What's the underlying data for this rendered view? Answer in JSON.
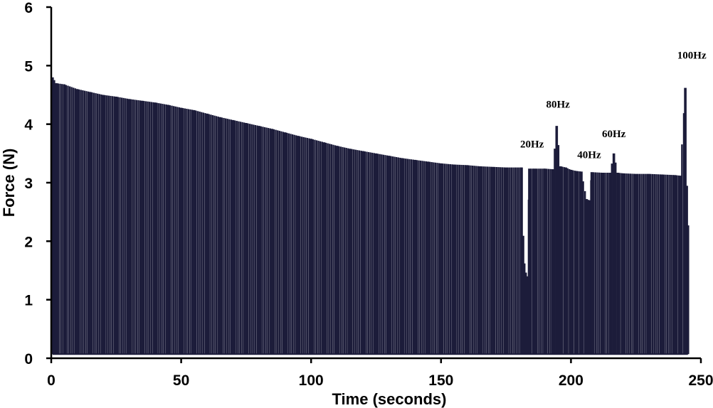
{
  "chart_data": {
    "type": "line",
    "title": "",
    "xlabel": "Time (seconds)",
    "ylabel": "Force (N)",
    "xlim": [
      0,
      250
    ],
    "ylim": [
      0,
      6
    ],
    "xticks": [
      0,
      50,
      100,
      150,
      200,
      250
    ],
    "yticks": [
      0,
      1,
      2,
      3,
      4,
      5,
      6
    ],
    "grid": false,
    "legend": "none",
    "color": "#1c1c3a",
    "baseline": 0.07,
    "series": [
      {
        "name": "",
        "description_points": "peak force of each contraction (time s, force N)",
        "points": [
          [
            0.5,
            4.8
          ],
          [
            2,
            4.7
          ],
          [
            5,
            4.68
          ],
          [
            10,
            4.6
          ],
          [
            15,
            4.55
          ],
          [
            20,
            4.5
          ],
          [
            25,
            4.47
          ],
          [
            30,
            4.43
          ],
          [
            35,
            4.4
          ],
          [
            40,
            4.37
          ],
          [
            45,
            4.33
          ],
          [
            50,
            4.28
          ],
          [
            55,
            4.24
          ],
          [
            60,
            4.18
          ],
          [
            65,
            4.12
          ],
          [
            70,
            4.07
          ],
          [
            75,
            4.02
          ],
          [
            80,
            3.97
          ],
          [
            85,
            3.92
          ],
          [
            90,
            3.86
          ],
          [
            95,
            3.8
          ],
          [
            100,
            3.75
          ],
          [
            105,
            3.69
          ],
          [
            110,
            3.63
          ],
          [
            115,
            3.58
          ],
          [
            120,
            3.54
          ],
          [
            125,
            3.5
          ],
          [
            130,
            3.46
          ],
          [
            135,
            3.42
          ],
          [
            140,
            3.39
          ],
          [
            145,
            3.36
          ],
          [
            150,
            3.33
          ],
          [
            155,
            3.31
          ],
          [
            160,
            3.3
          ],
          [
            165,
            3.28
          ],
          [
            170,
            3.27
          ],
          [
            175,
            3.26
          ],
          [
            181,
            3.26
          ],
          [
            182,
            1.62
          ],
          [
            183,
            1.4
          ],
          [
            184,
            3.24
          ],
          [
            186,
            3.24
          ],
          [
            190,
            3.24
          ],
          [
            193,
            3.23
          ],
          [
            194.5,
            3.97
          ],
          [
            196,
            3.28
          ],
          [
            198,
            3.26
          ],
          [
            200,
            3.22
          ],
          [
            202,
            3.2
          ],
          [
            204,
            3.19
          ],
          [
            206,
            2.72
          ],
          [
            207,
            2.7
          ],
          [
            208,
            3.18
          ],
          [
            212,
            3.17
          ],
          [
            215,
            3.17
          ],
          [
            216.5,
            3.5
          ],
          [
            218,
            3.17
          ],
          [
            220,
            3.16
          ],
          [
            225,
            3.15
          ],
          [
            230,
            3.15
          ],
          [
            235,
            3.14
          ],
          [
            240,
            3.13
          ],
          [
            242,
            3.12
          ],
          [
            244,
            4.62
          ],
          [
            245,
            2.27
          ]
        ]
      }
    ],
    "annotations": [
      {
        "text": "100Hz",
        "x": 246.5,
        "y": 5.12
      },
      {
        "text": "80Hz",
        "x": 195,
        "y": 4.28
      },
      {
        "text": "60Hz",
        "x": 216.5,
        "y": 3.78
      },
      {
        "text": "40Hz",
        "x": 207,
        "y": 3.42
      },
      {
        "text": "20Hz",
        "x": 185,
        "y": 3.6
      }
    ]
  }
}
